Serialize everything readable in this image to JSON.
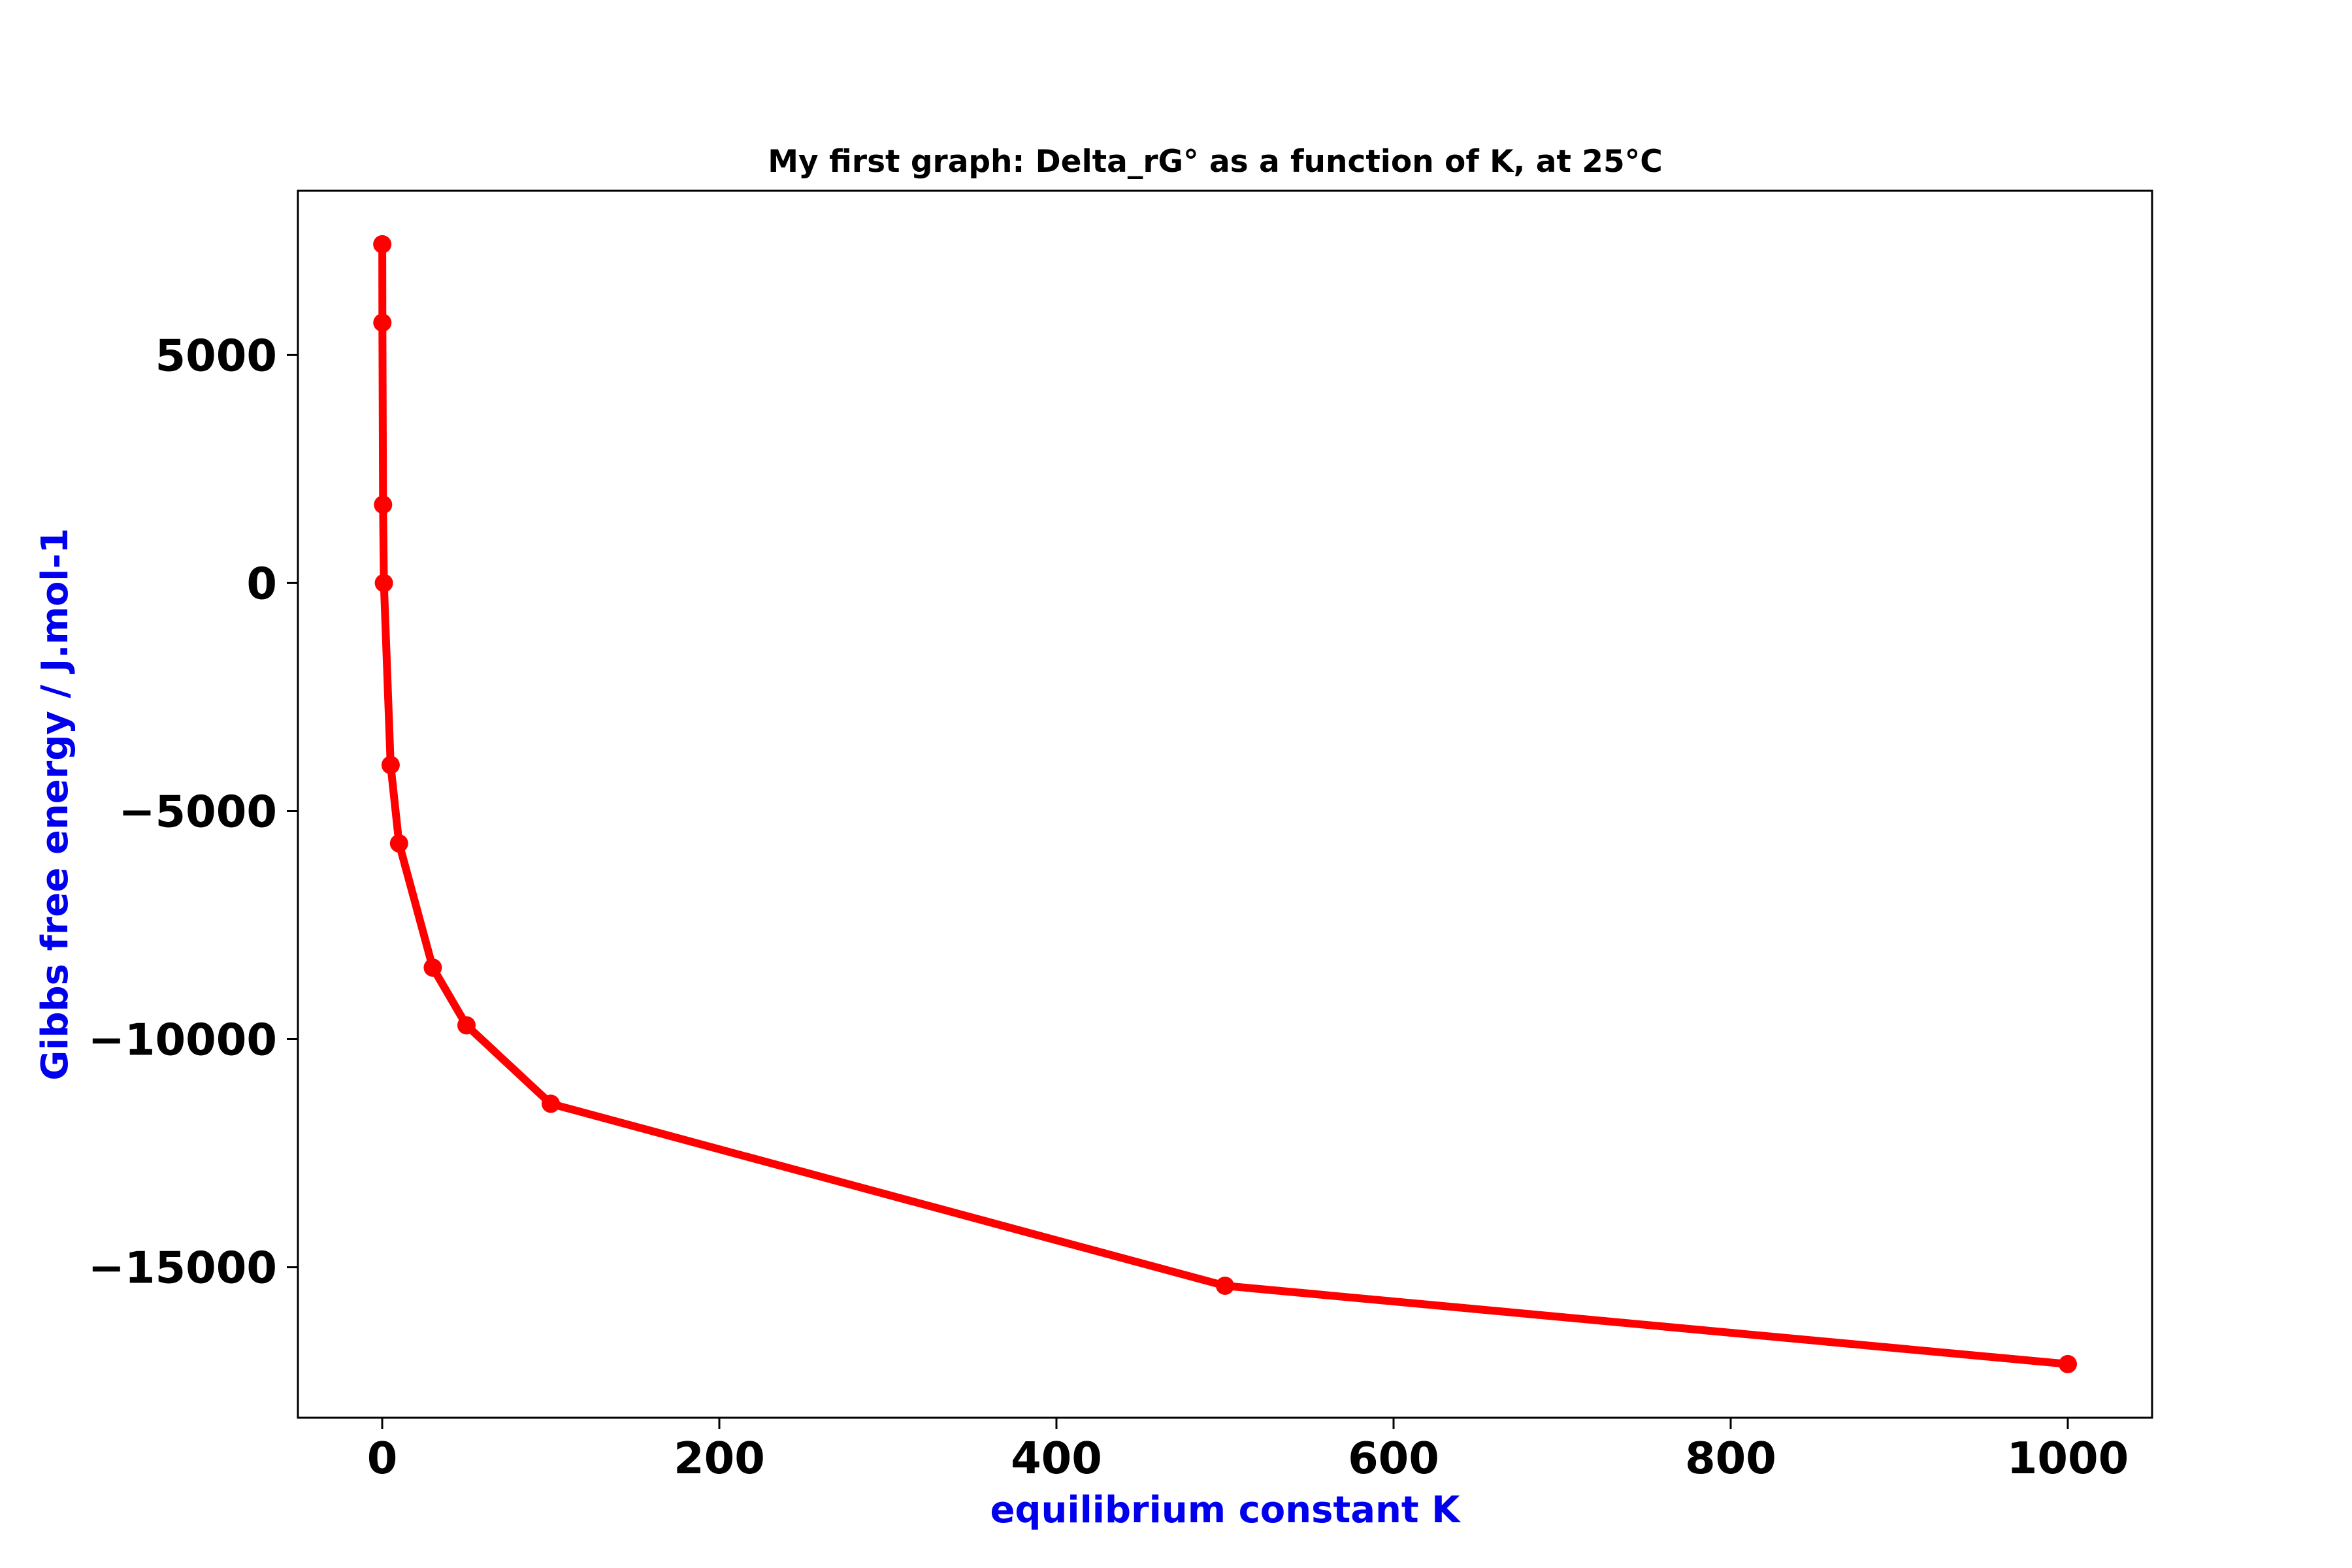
{
  "chart_data": {
    "type": "line",
    "title": "My first graph: Delta_rG° as a function of K, at 25°C",
    "xlabel": "equilibrium constant K",
    "ylabel": "Gibbs free energy / J.mol-1",
    "xlim": [
      -50,
      1050
    ],
    "ylim": [
      -18300,
      8600
    ],
    "xticks": [
      0,
      200,
      400,
      600,
      800,
      1000
    ],
    "xtick_labels": [
      "0",
      "200",
      "400",
      "600",
      "800",
      "1000"
    ],
    "yticks": [
      -15000,
      -10000,
      -5000,
      0,
      5000
    ],
    "ytick_labels": [
      "−15000",
      "−10000",
      "−5000",
      "0",
      "5000"
    ],
    "grid": false,
    "series": [
      {
        "x": [
          0.05,
          0.1,
          0.5,
          1,
          5,
          10,
          30,
          50,
          100,
          500,
          1000
        ],
        "y": [
          7427,
          5708,
          1718,
          0,
          -3990,
          -5708,
          -8431,
          -9697,
          -11416,
          -15406,
          -17124
        ],
        "color": "#ff0000",
        "marker": "circle"
      }
    ],
    "colors": {
      "line": "#ff0000",
      "axis_label": "#0000ee",
      "tick_label": "#000000",
      "frame": "#000000"
    }
  }
}
